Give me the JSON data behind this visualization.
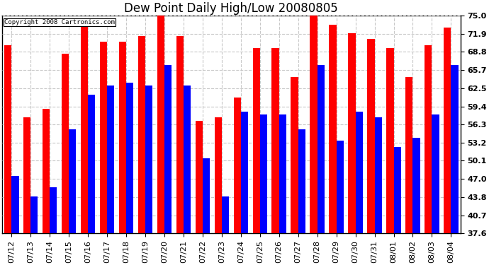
{
  "title": "Dew Point Daily High/Low 20080805",
  "copyright": "Copyright 2008 Cartronics.com",
  "dates": [
    "07/12",
    "07/13",
    "07/14",
    "07/15",
    "07/16",
    "07/17",
    "07/18",
    "07/19",
    "07/20",
    "07/21",
    "07/22",
    "07/23",
    "07/24",
    "07/25",
    "07/26",
    "07/27",
    "07/28",
    "07/29",
    "07/30",
    "07/31",
    "08/01",
    "08/02",
    "08/03",
    "08/04"
  ],
  "highs": [
    70.0,
    57.5,
    59.0,
    68.5,
    73.5,
    70.5,
    70.5,
    71.5,
    75.5,
    71.5,
    57.0,
    57.5,
    61.0,
    69.5,
    69.5,
    64.5,
    75.5,
    73.5,
    72.0,
    71.0,
    69.5,
    64.5,
    70.0,
    73.0
  ],
  "lows": [
    47.5,
    44.0,
    45.5,
    55.5,
    61.5,
    63.0,
    63.5,
    63.0,
    66.5,
    63.0,
    50.5,
    44.0,
    58.5,
    58.0,
    58.0,
    55.5,
    66.5,
    53.5,
    58.5,
    57.5,
    52.5,
    54.0,
    58.0,
    66.5
  ],
  "high_color": "#ff0000",
  "low_color": "#0000ff",
  "bg_color": "#ffffff",
  "plot_bg_color": "#ffffff",
  "grid_color": "#c8c8c8",
  "yticks": [
    37.6,
    40.7,
    43.8,
    47.0,
    50.1,
    53.2,
    56.3,
    59.4,
    62.5,
    65.7,
    68.8,
    71.9,
    75.0
  ],
  "ylim_min": 37.6,
  "ylim_max": 75.0,
  "title_fontsize": 12,
  "tick_fontsize": 8,
  "bar_width": 0.38
}
